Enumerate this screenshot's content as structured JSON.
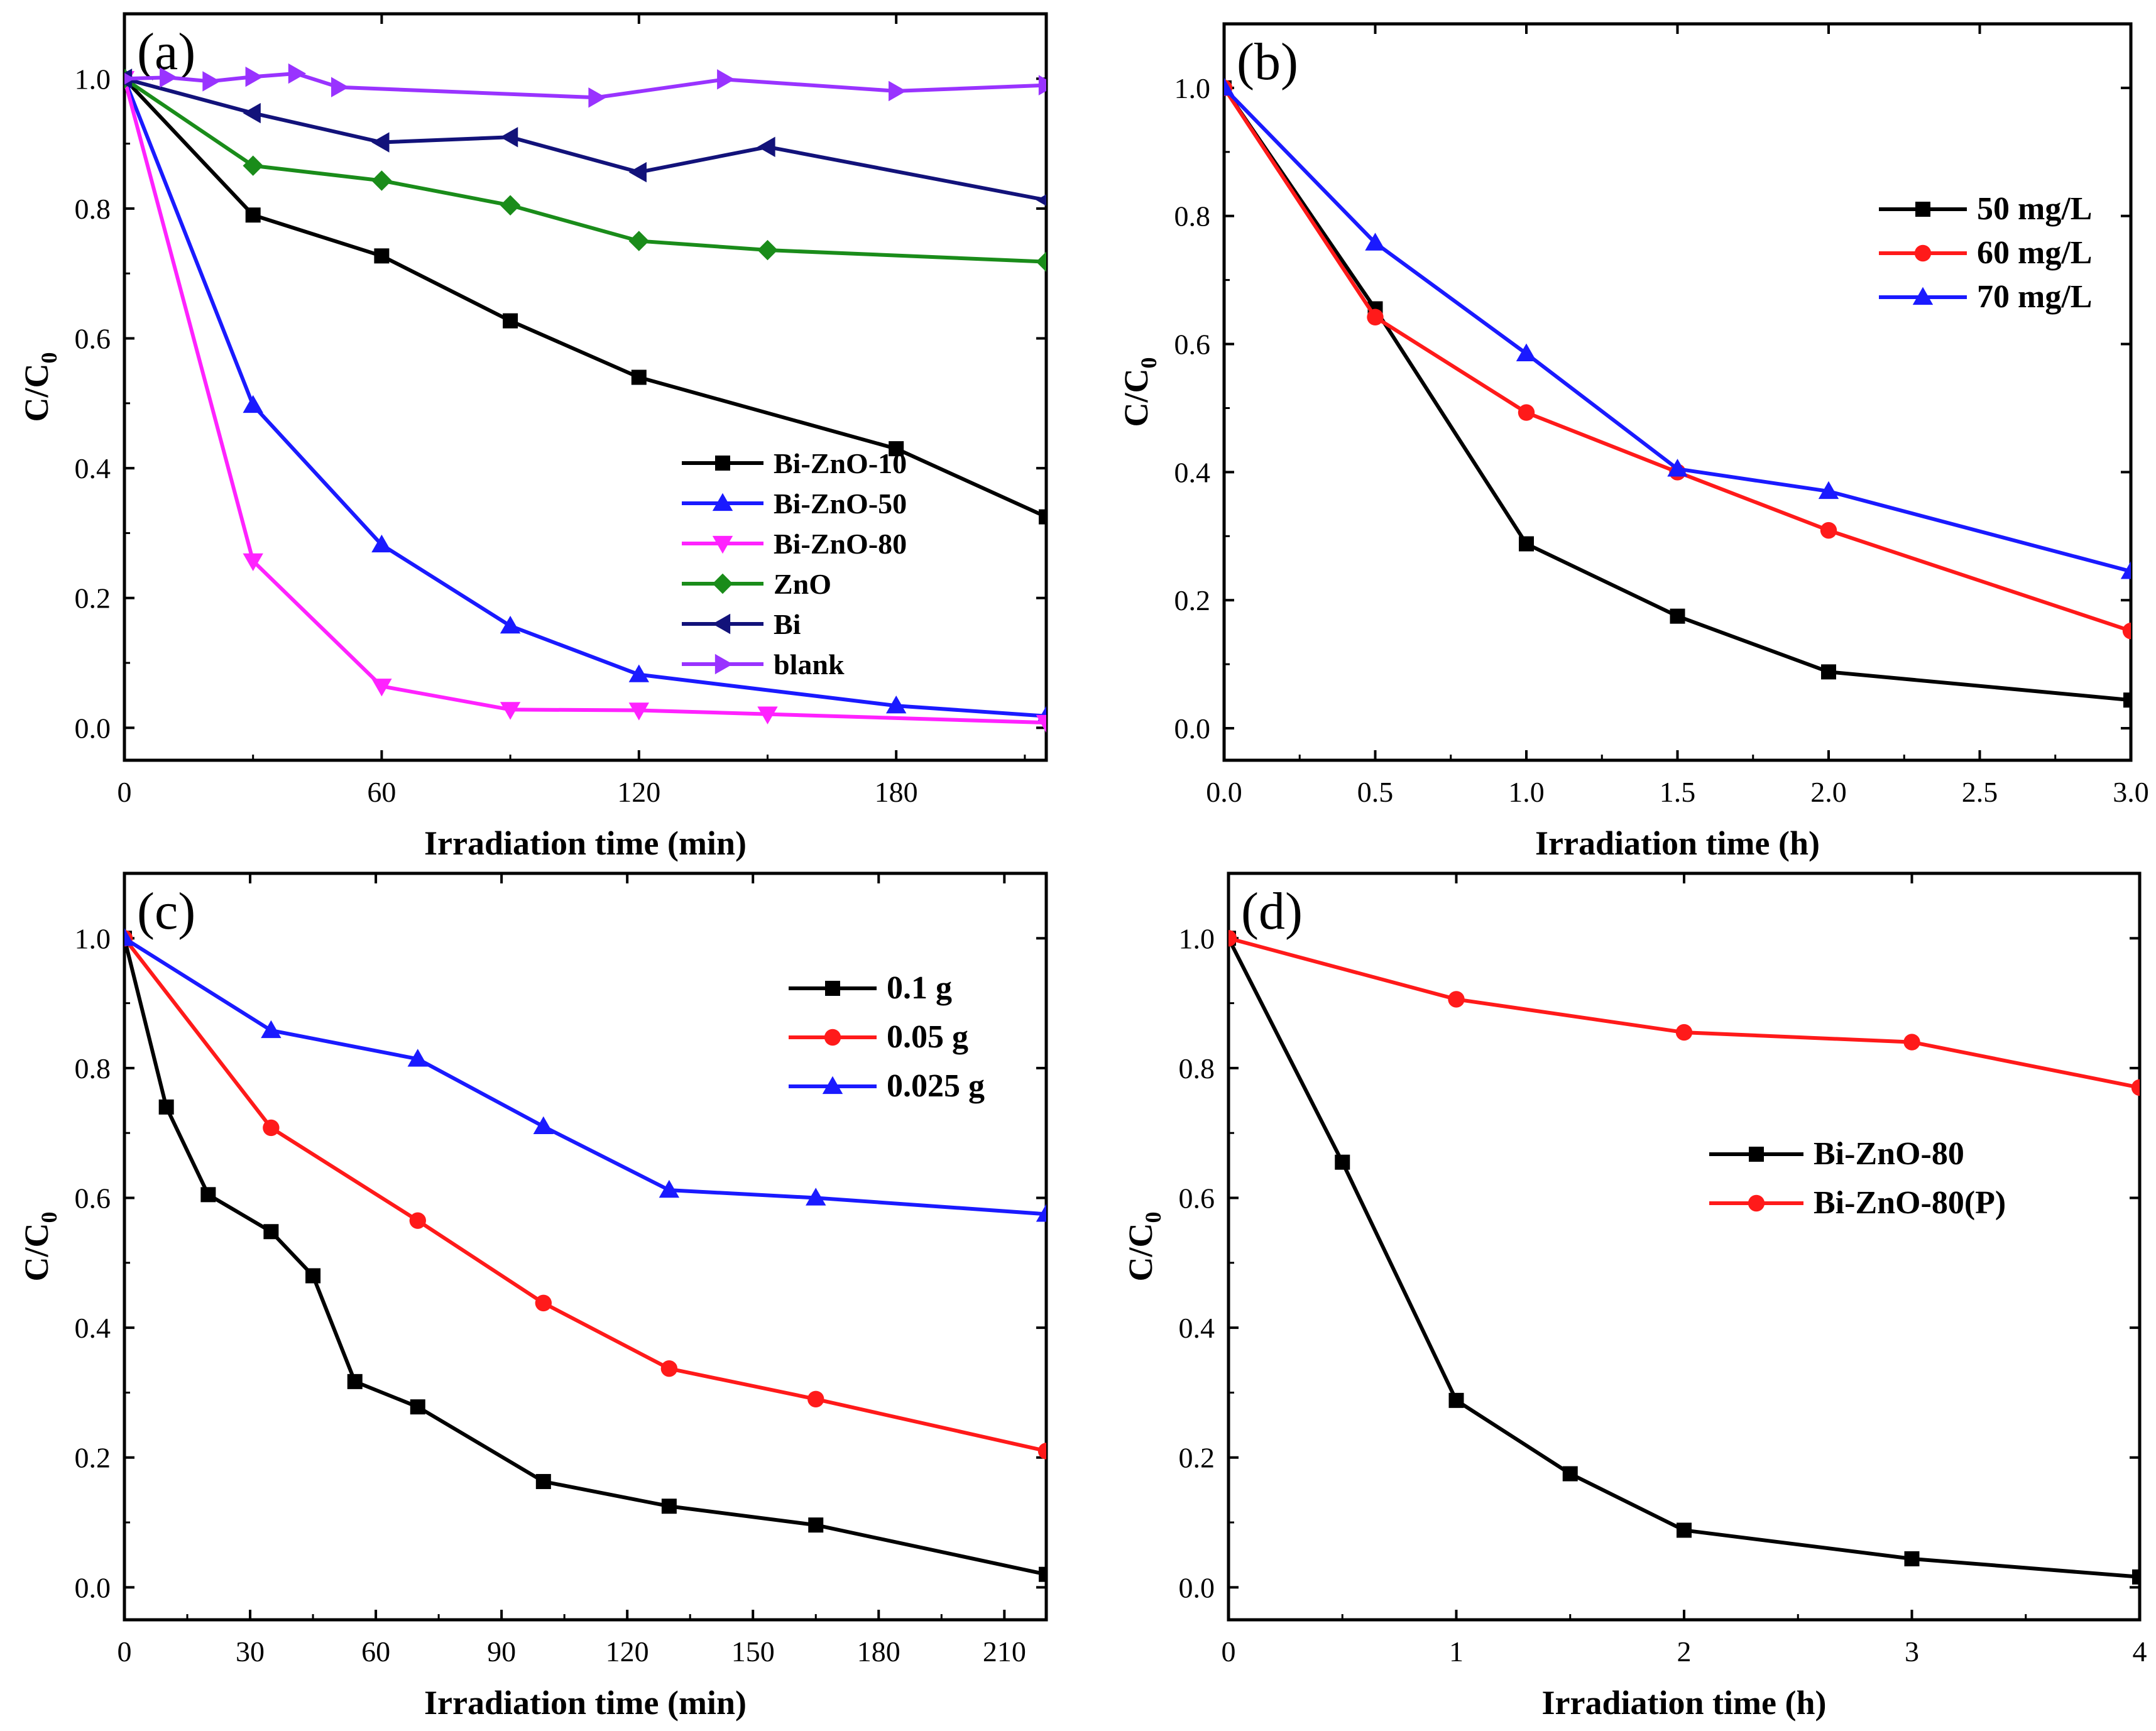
{
  "chart_data": [
    {
      "type": "line",
      "panel_label": "(a)",
      "xlabel": "Irradiation time (min)",
      "ylabel": "C/C",
      "ylabel_sub": "0",
      "xlim": [
        0,
        215
      ],
      "ylim": [
        -0.05,
        1.1
      ],
      "xticks": [
        0,
        60,
        120,
        180
      ],
      "yticks": [
        0.0,
        0.2,
        0.4,
        0.6,
        0.8,
        1.0
      ],
      "tick_decimals": 1,
      "legend_position": "center-right",
      "series": [
        {
          "name": "Bi-ZnO-10",
          "color": "#000000",
          "marker": "square",
          "x": [
            0,
            30,
            60,
            90,
            120,
            180,
            215
          ],
          "y": [
            1.0,
            0.79,
            0.727,
            0.627,
            0.54,
            0.43,
            0.325
          ]
        },
        {
          "name": "Bi-ZnO-50",
          "color": "#1a1aff",
          "marker": "triangle-up",
          "x": [
            0,
            30,
            60,
            90,
            120,
            180,
            215
          ],
          "y": [
            1.0,
            0.497,
            0.282,
            0.157,
            0.082,
            0.034,
            0.018
          ]
        },
        {
          "name": "Bi-ZnO-80",
          "color": "#ff22ff",
          "marker": "triangle-down",
          "x": [
            0,
            30,
            60,
            90,
            120,
            150,
            215
          ],
          "y": [
            1.0,
            0.257,
            0.064,
            0.028,
            0.027,
            0.021,
            0.008
          ]
        },
        {
          "name": "ZnO",
          "color": "#1a8c1a",
          "marker": "diamond",
          "x": [
            0,
            30,
            60,
            90,
            120,
            150,
            215
          ],
          "y": [
            1.0,
            0.866,
            0.843,
            0.805,
            0.75,
            0.736,
            0.718
          ]
        },
        {
          "name": "Bi",
          "color": "#12127a",
          "marker": "triangle-left",
          "x": [
            0,
            30,
            60,
            90,
            120,
            150,
            215
          ],
          "y": [
            1.0,
            0.947,
            0.902,
            0.91,
            0.856,
            0.895,
            0.813
          ]
        },
        {
          "name": "blank",
          "color": "#9933ff",
          "marker": "triangle-right",
          "x": [
            0,
            10,
            20,
            30,
            40,
            50,
            110,
            140,
            180,
            215
          ],
          "y": [
            1.0,
            1.002,
            0.996,
            1.003,
            1.008,
            0.987,
            0.971,
            0.999,
            0.981,
            0.99
          ]
        }
      ]
    },
    {
      "type": "line",
      "panel_label": "(b)",
      "xlabel": "Irradiation time (h)",
      "ylabel": "C/C",
      "ylabel_sub": "0",
      "xlim": [
        0,
        3.0
      ],
      "ylim": [
        -0.05,
        1.1
      ],
      "xticks": [
        0.0,
        0.5,
        1.0,
        1.5,
        2.0,
        2.5,
        3.0
      ],
      "yticks": [
        0.0,
        0.2,
        0.4,
        0.6,
        0.8,
        1.0
      ],
      "tick_decimals": 1,
      "legend_position": "top-right",
      "series": [
        {
          "name": "50 mg/L",
          "color": "#000000",
          "marker": "square",
          "x": [
            0,
            0.5,
            1.0,
            1.5,
            2.0,
            3.0
          ],
          "y": [
            1.0,
            0.655,
            0.288,
            0.175,
            0.088,
            0.044
          ]
        },
        {
          "name": "60 mg/L",
          "color": "#ff1a1a",
          "marker": "circle",
          "x": [
            0,
            0.5,
            1.0,
            1.5,
            2.0,
            3.0
          ],
          "y": [
            1.0,
            0.642,
            0.493,
            0.4,
            0.309,
            0.152
          ]
        },
        {
          "name": "70 mg/L",
          "color": "#1a1aff",
          "marker": "triangle-up",
          "x": [
            0,
            0.5,
            1.0,
            1.5,
            2.0,
            3.0
          ],
          "y": [
            1.0,
            0.758,
            0.585,
            0.405,
            0.37,
            0.245
          ]
        }
      ]
    },
    {
      "type": "line",
      "panel_label": "(c)",
      "xlabel": "Irradiation time (min)",
      "ylabel": "C/C",
      "ylabel_sub": "0",
      "xlim": [
        0,
        220
      ],
      "ylim": [
        -0.05,
        1.1
      ],
      "xticks": [
        0,
        30,
        60,
        90,
        120,
        150,
        180,
        210
      ],
      "yticks": [
        0.0,
        0.2,
        0.4,
        0.6,
        0.8,
        1.0
      ],
      "tick_decimals": 1,
      "legend_position": "top-right",
      "series": [
        {
          "name": "0.1 g",
          "color": "#000000",
          "marker": "square",
          "x": [
            0,
            10,
            20,
            35,
            45,
            55,
            70,
            100,
            130,
            165,
            220
          ],
          "y": [
            1.0,
            0.74,
            0.605,
            0.548,
            0.48,
            0.317,
            0.278,
            0.163,
            0.125,
            0.096,
            0.02
          ]
        },
        {
          "name": "0.05 g",
          "color": "#ff1a1a",
          "marker": "circle",
          "x": [
            0,
            35,
            70,
            100,
            130,
            165,
            220
          ],
          "y": [
            1.0,
            0.708,
            0.565,
            0.438,
            0.337,
            0.29,
            0.21
          ]
        },
        {
          "name": "0.025 g",
          "color": "#1a1aff",
          "marker": "triangle-up",
          "x": [
            0,
            35,
            70,
            100,
            130,
            165,
            220
          ],
          "y": [
            1.0,
            0.858,
            0.814,
            0.71,
            0.612,
            0.6,
            0.575
          ]
        }
      ]
    },
    {
      "type": "line",
      "panel_label": "(d)",
      "xlabel": "Irradiation time (h)",
      "ylabel": "C/C",
      "ylabel_sub": "0",
      "xlim": [
        0,
        4
      ],
      "ylim": [
        -0.05,
        1.1
      ],
      "xticks": [
        0,
        1,
        2,
        3,
        4
      ],
      "yticks": [
        0.0,
        0.2,
        0.4,
        0.6,
        0.8,
        1.0
      ],
      "tick_decimals": 1,
      "legend_position": "center-right",
      "series": [
        {
          "name": "Bi-ZnO-80",
          "color": "#000000",
          "marker": "square",
          "x": [
            0,
            0.5,
            1,
            1.5,
            2,
            3,
            4
          ],
          "y": [
            1.0,
            0.655,
            0.288,
            0.175,
            0.088,
            0.044,
            0.016
          ]
        },
        {
          "name": "Bi-ZnO-80(P)",
          "color": "#ff1a1a",
          "marker": "circle",
          "x": [
            0,
            1,
            2,
            3,
            4
          ],
          "y": [
            1.0,
            0.906,
            0.855,
            0.84,
            0.77
          ]
        }
      ]
    }
  ]
}
